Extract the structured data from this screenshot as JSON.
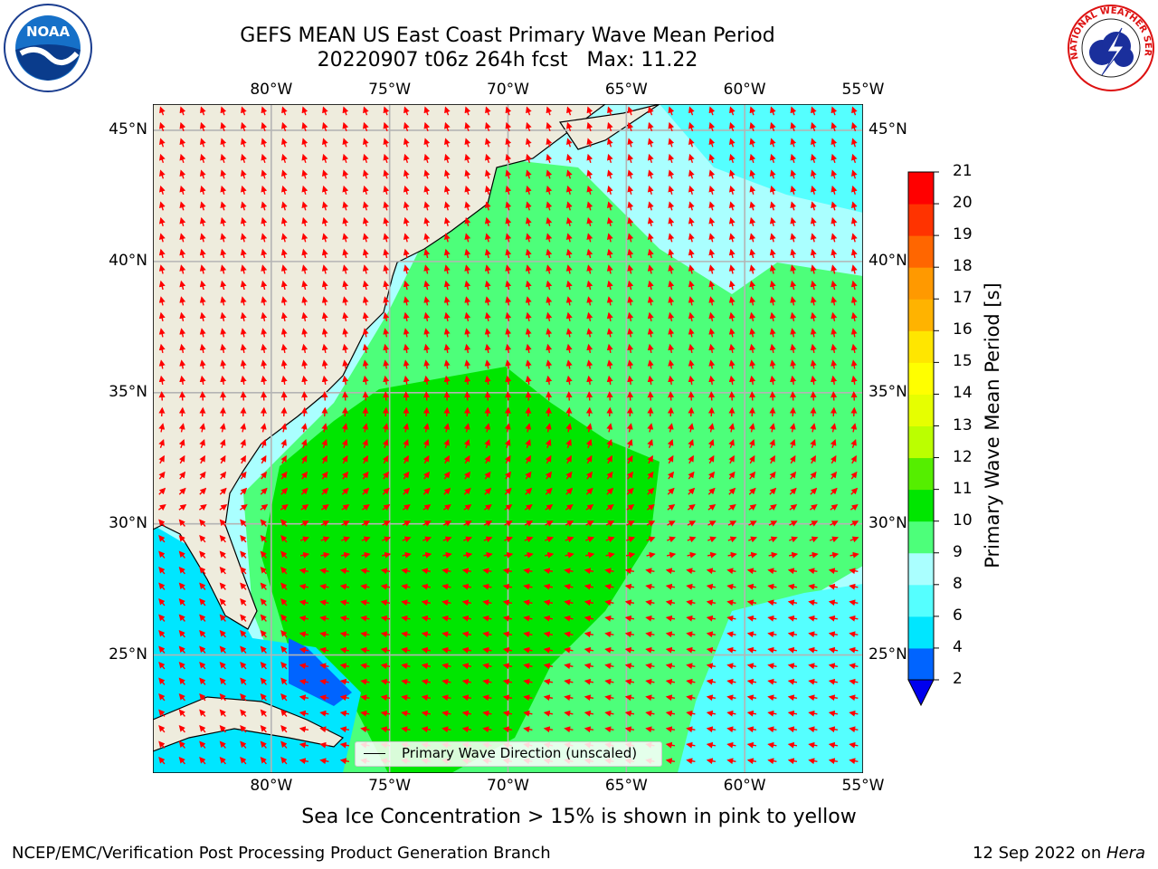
{
  "title": {
    "line1": "GEFS MEAN US East Coast Primary Wave Mean Period",
    "line2": "20220907 t06z 264h fcst   Max: 11.22"
  },
  "map": {
    "lon_labels": [
      "80°W",
      "75°W",
      "70°W",
      "65°W",
      "60°W",
      "55°W"
    ],
    "lat_labels": [
      "45°N",
      "40°N",
      "35°N",
      "30°N",
      "25°N"
    ],
    "lon_range": [
      -85,
      -55
    ],
    "lat_range": [
      20.5,
      46
    ],
    "grid": true
  },
  "legend": {
    "label": "Primary Wave Direction (unscaled)"
  },
  "colorbar": {
    "label": "Primary Wave Mean Period [s]",
    "ticks": [
      "2",
      "4",
      "6",
      "8",
      "9",
      "10",
      "11",
      "12",
      "13",
      "14",
      "15",
      "16",
      "17",
      "18",
      "19",
      "20",
      "21"
    ],
    "colors": [
      "#0064ff",
      "#00e6ff",
      "#55ffff",
      "#aaffff",
      "#4dff7a",
      "#00e600",
      "#55ee00",
      "#bbff00",
      "#e6ff00",
      "#ffff00",
      "#ffe600",
      "#ffb300",
      "#ff9900",
      "#ff6600",
      "#ff3300",
      "#ff0000"
    ],
    "extend_color": "#0000ee"
  },
  "colors": {
    "land": "#eeecdd",
    "arrow": "#ff0000",
    "grid": "#b4b4b4"
  },
  "note": "Sea Ice Concentration > 15% is shown in pink to yellow",
  "footer": {
    "left": "NCEP/EMC/Verification Post Processing Product Generation Branch",
    "right_date": "12 Sep 2022 on ",
    "right_host": "Hera"
  },
  "logos": {
    "noaa_text": "NOAA",
    "nws_text": "NATIONAL WEATHER SERVICE"
  }
}
